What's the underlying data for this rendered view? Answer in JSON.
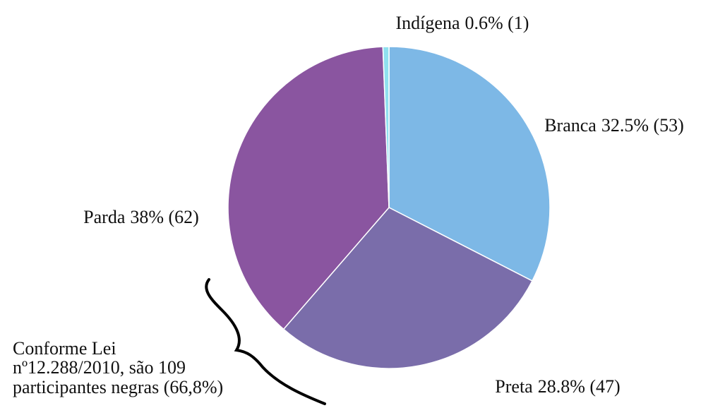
{
  "chart_data": {
    "type": "pie",
    "categories": [
      "Branca",
      "Preta",
      "Parda",
      "Indígena"
    ],
    "values": [
      32.5,
      28.8,
      38,
      0.6
    ],
    "value_labels": [
      "32.5% (53)",
      "28.8% (47)",
      "38% (62)",
      "0.6% (1)"
    ],
    "colors": [
      "#7db8e6",
      "#7a6daa",
      "#8a55a0",
      "#8fe0ef"
    ],
    "annotation": [
      "Conforme Lei",
      "nº12.288/2010, são 109",
      "participantes negras (66,8%)"
    ]
  }
}
